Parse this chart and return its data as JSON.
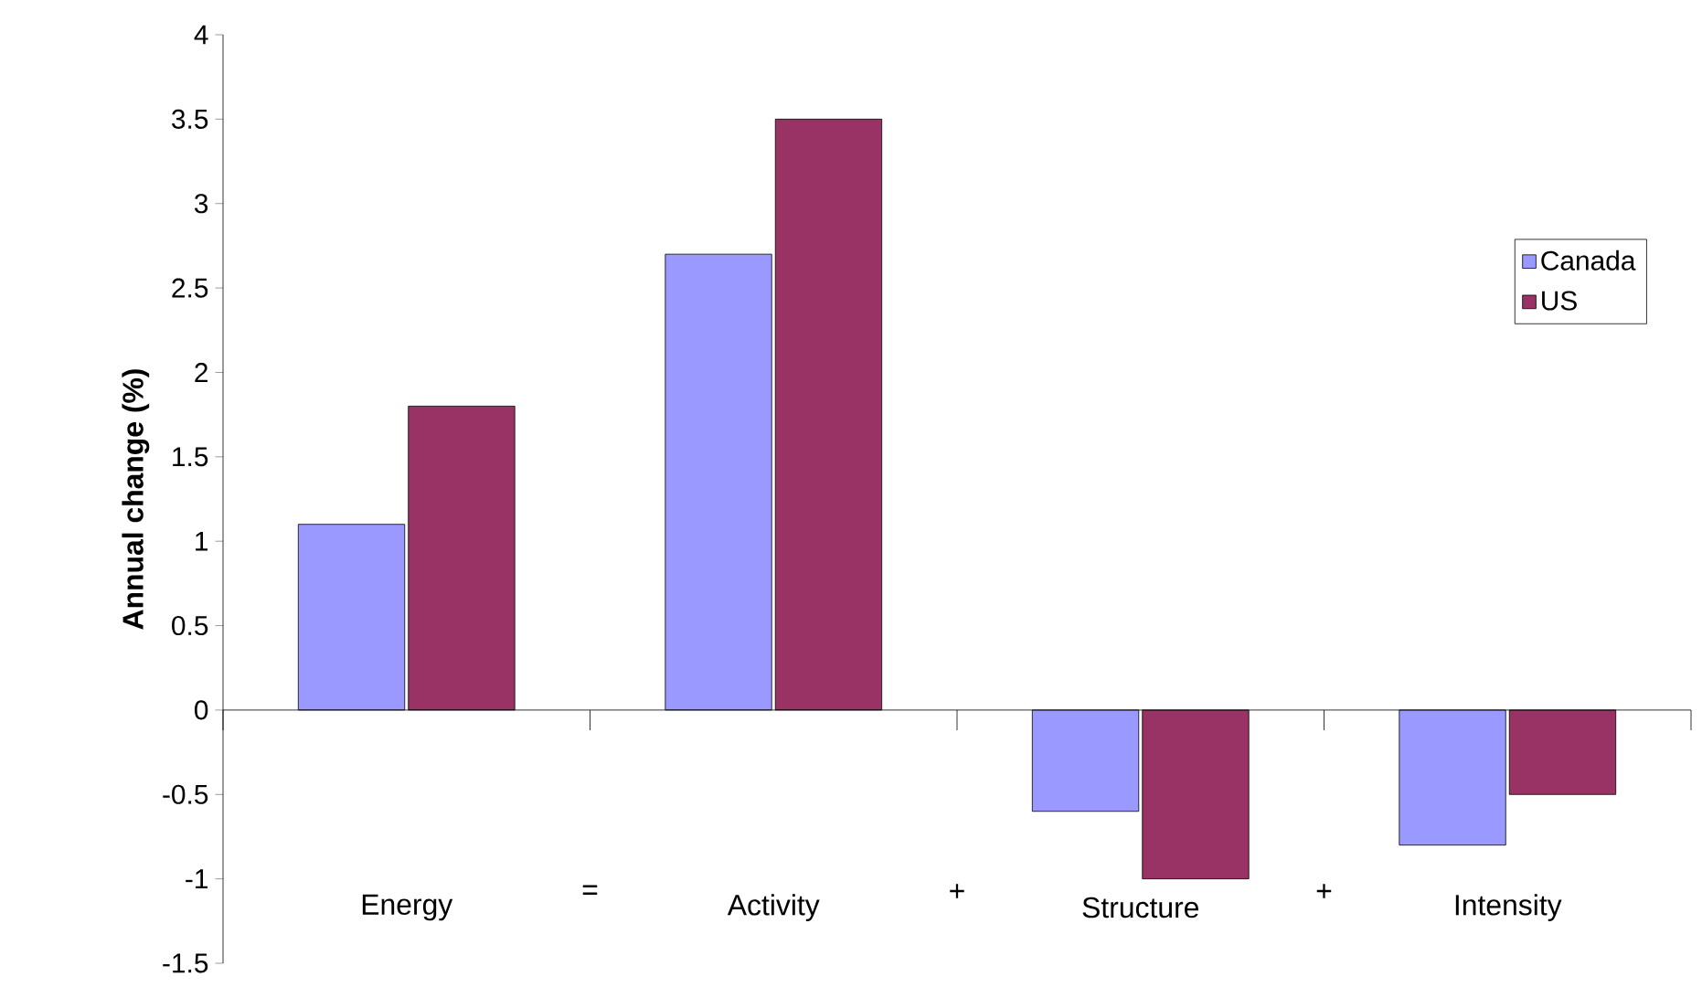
{
  "chart_data": {
    "type": "bar",
    "ylabel": "Annual change (%)",
    "categories": [
      "Energy",
      "Activity",
      "Structure",
      "Intensity"
    ],
    "series": [
      {
        "name": "Canada",
        "color": "#9999ff",
        "values": [
          1.1,
          2.7,
          -0.6,
          -0.8
        ]
      },
      {
        "name": "US",
        "color": "#993366",
        "values": [
          1.8,
          3.5,
          -1.0,
          -0.5
        ]
      }
    ],
    "ylim": [
      -1.5,
      4
    ],
    "yticks": [
      -1.5,
      -1,
      -0.5,
      0,
      0.5,
      1,
      1.5,
      2,
      2.5,
      3,
      3.5,
      4
    ],
    "annotations": [
      "=",
      "+",
      "+"
    ],
    "legend": "top right"
  }
}
